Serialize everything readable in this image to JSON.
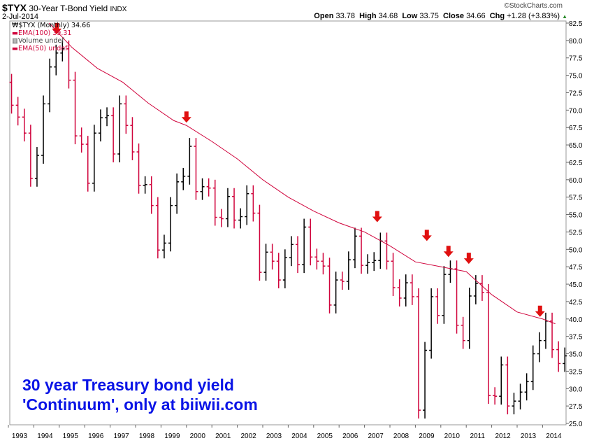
{
  "header": {
    "symbol": "$TYX",
    "name": "30-Year T-Bond Yield",
    "exchange": "INDX",
    "date": "2-Jul-2014",
    "source": "©StockCharts.com",
    "open_label": "Open",
    "open": "33.78",
    "high_label": "High",
    "high": "34.68",
    "low_label": "Low",
    "low": "33.75",
    "close_label": "Close",
    "close": "34.66",
    "chg_label": "Chg",
    "chg": "+1.28 (+3.83%)",
    "chg_icon": "triangle-up-icon",
    "chg_color": "#2a8a2a"
  },
  "legend": {
    "price": "$TYX (Monthly) 34.66",
    "ema100": "EMA(100) 39.31",
    "volume": "Volume undef",
    "ema50": "EMA(50) undef"
  },
  "annotation": {
    "line1": "30 year Treasury bond yield",
    "line2": "'Continuum', only at biiwii.com"
  },
  "colors": {
    "up": "#000000",
    "down": "#d0043c",
    "ema": "#d0043c",
    "arrow": "#e01010",
    "annotation": "#0a14e6"
  },
  "chart_data": {
    "type": "ohlc",
    "ylim": [
      25,
      82.5
    ],
    "y_ticks": [
      "25.0",
      "27.5",
      "30.0",
      "32.5",
      "35.0",
      "37.5",
      "40.0",
      "42.5",
      "45.0",
      "47.5",
      "50.0",
      "52.5",
      "55.0",
      "57.5",
      "60.0",
      "62.5",
      "65.0",
      "67.5",
      "70.0",
      "72.5",
      "75.0",
      "77.5",
      "80.0",
      "82.5"
    ],
    "x_ticks": [
      "1993",
      "1994",
      "1995",
      "1996",
      "1997",
      "1998",
      "1999",
      "2000",
      "2001",
      "2002",
      "2003",
      "2004",
      "2005",
      "2006",
      "2007",
      "2008",
      "2009",
      "2010",
      "2011",
      "2012",
      "2013",
      "2014"
    ],
    "grid": false,
    "quarterly_close": {
      "start": 1993.0,
      "values": [
        70.7,
        69.0,
        66.7,
        60.2,
        63.5,
        70.9,
        76.2,
        78.2,
        78.8,
        74.3,
        66.3,
        65.1,
        59.5,
        66.7,
        68.9,
        69.2,
        63.7,
        70.9,
        67.8,
        64.0,
        59.2,
        59.3,
        56.3,
        49.9,
        50.9,
        56.3,
        59.7,
        60.5,
        64.8,
        58.3,
        59.0,
        58.8,
        54.6,
        54.4,
        57.6,
        54.2,
        54.7,
        58.0,
        55.2,
        46.7,
        49.6,
        48.3,
        45.6,
        48.8,
        50.7,
        47.8,
        53.2,
        48.9,
        48.3,
        47.6,
        42.0,
        45.6,
        45.4,
        48.5,
        51.9,
        47.7,
        48.1,
        48.4,
        51.2,
        48.3,
        44.5,
        43.0,
        45.2,
        43.2,
        26.9,
        35.5,
        43.2,
        40.5,
        46.4,
        47.2,
        39.1,
        36.9,
        43.3,
        45.1,
        43.8,
        29.0,
        28.9,
        33.4,
        27.5,
        28.2,
        29.5,
        31.0,
        35.0,
        36.9,
        39.7,
        35.6,
        33.6,
        34.7
      ]
    },
    "ema100": {
      "x": [
        1994.6,
        1995.5,
        1996.5,
        1997.5,
        1998.5,
        1999.5,
        2000.0,
        2001.0,
        2002.0,
        2003.0,
        2004.0,
        2005.0,
        2006.0,
        2007.0,
        2008.0,
        2009.0,
        2010.0,
        2011.0,
        2012.0,
        2013.0,
        2014.0,
        2014.5
      ],
      "y": [
        82.5,
        79.0,
        76.0,
        74.0,
        71.0,
        68.5,
        67.8,
        65.5,
        63.0,
        60.0,
        57.5,
        55.5,
        53.8,
        52.5,
        50.5,
        48.2,
        47.5,
        46.8,
        43.5,
        41.0,
        40.0,
        39.31
      ]
    },
    "peak_arrows": [
      {
        "x": 1994.9,
        "y": 80.5
      },
      {
        "x": 2000.0,
        "y": 67.8
      },
      {
        "x": 2007.5,
        "y": 53.5
      },
      {
        "x": 2009.45,
        "y": 50.8
      },
      {
        "x": 2010.3,
        "y": 48.5
      },
      {
        "x": 2011.1,
        "y": 47.5
      },
      {
        "x": 2013.9,
        "y": 39.9
      }
    ]
  }
}
